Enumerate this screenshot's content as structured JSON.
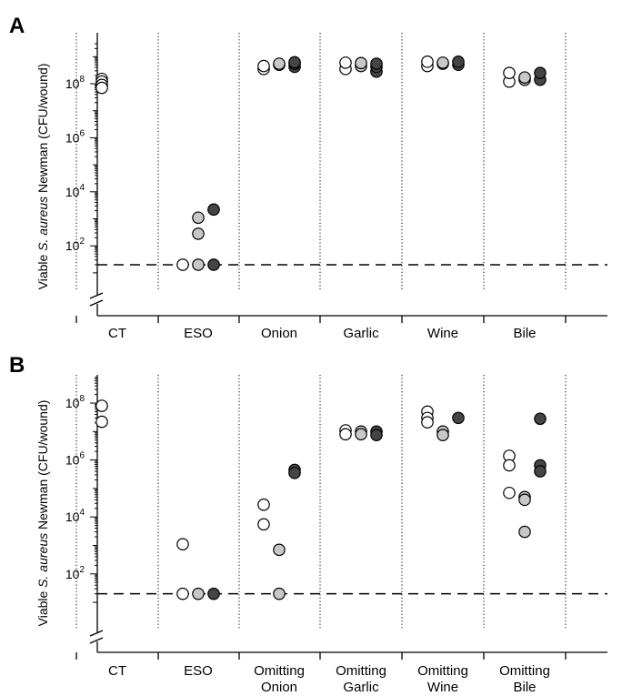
{
  "chart_data": [
    {
      "panel": "A",
      "type": "scatter",
      "yscale": "log",
      "ylim": [
        1,
        3000000000
      ],
      "yticks": [
        100,
        10000,
        1000000,
        100000000
      ],
      "ytick_labels": [
        "10^2",
        "10^4",
        "10^6",
        "10^8"
      ],
      "ylabel": "Viable S. aureus Newman (CFU/wound)",
      "ylabel_parts": [
        "Viable ",
        "S. aureus",
        " Newman (CFU/wound)"
      ],
      "detection_limit": 20,
      "categories": [
        {
          "label": [
            "CT"
          ]
        },
        {
          "label": [
            "ESO"
          ]
        },
        {
          "label": [
            "Onion"
          ]
        },
        {
          "label": [
            "Garlic"
          ]
        },
        {
          "label": [
            "Wine"
          ]
        },
        {
          "label": [
            "Bile"
          ]
        }
      ],
      "points": [
        {
          "cat": 0,
          "rep": 0,
          "values": [
            150000000,
            120000000,
            90000000,
            70000000
          ]
        },
        {
          "cat": 1,
          "rep": 0,
          "values": [
            20
          ]
        },
        {
          "cat": 1,
          "rep": 1,
          "values": [
            20,
            280,
            1100
          ]
        },
        {
          "cat": 1,
          "rep": 2,
          "values": [
            20,
            2200
          ]
        },
        {
          "cat": 2,
          "rep": 0,
          "values": [
            350000000,
            450000000
          ]
        },
        {
          "cat": 2,
          "rep": 1,
          "values": [
            500000000,
            550000000
          ]
        },
        {
          "cat": 2,
          "rep": 2,
          "values": [
            420000000,
            550000000,
            620000000
          ]
        },
        {
          "cat": 3,
          "rep": 0,
          "values": [
            350000000,
            600000000
          ]
        },
        {
          "cat": 3,
          "rep": 1,
          "values": [
            450000000,
            580000000
          ]
        },
        {
          "cat": 3,
          "rep": 2,
          "values": [
            280000000,
            420000000,
            550000000
          ]
        },
        {
          "cat": 4,
          "rep": 0,
          "values": [
            450000000,
            650000000
          ]
        },
        {
          "cat": 4,
          "rep": 1,
          "values": [
            550000000,
            600000000
          ]
        },
        {
          "cat": 4,
          "rep": 2,
          "values": [
            500000000,
            650000000
          ]
        },
        {
          "cat": 5,
          "rep": 0,
          "values": [
            120000000,
            250000000
          ]
        },
        {
          "cat": 5,
          "rep": 1,
          "values": [
            140000000,
            170000000
          ]
        },
        {
          "cat": 5,
          "rep": 2,
          "values": [
            140000000,
            250000000
          ]
        }
      ]
    },
    {
      "panel": "B",
      "type": "scatter",
      "yscale": "log",
      "ylim": [
        1,
        800000000
      ],
      "yticks": [
        100,
        10000,
        1000000,
        100000000
      ],
      "ytick_labels": [
        "10^2",
        "10^4",
        "10^6",
        "10^8"
      ],
      "ylabel": "Viable S. aureus Newman (CFU/wound)",
      "ylabel_parts": [
        "Viable ",
        "S. aureus",
        " Newman (CFU/wound)"
      ],
      "detection_limit": 20,
      "categories": [
        {
          "label": [
            "CT"
          ]
        },
        {
          "label": [
            "ESO"
          ]
        },
        {
          "label": [
            "Omitting",
            "Onion"
          ]
        },
        {
          "label": [
            "Omitting",
            "Garlic"
          ]
        },
        {
          "label": [
            "Omitting",
            "Wine"
          ]
        },
        {
          "label": [
            "Omitting",
            "Bile"
          ]
        }
      ],
      "points": [
        {
          "cat": 0,
          "rep": 0,
          "values": [
            80000000,
            22000000
          ]
        },
        {
          "cat": 1,
          "rep": 0,
          "values": [
            1100,
            20
          ]
        },
        {
          "cat": 1,
          "rep": 1,
          "values": [
            20
          ]
        },
        {
          "cat": 1,
          "rep": 2,
          "values": [
            20
          ]
        },
        {
          "cat": 2,
          "rep": 0,
          "values": [
            27000,
            5500
          ]
        },
        {
          "cat": 2,
          "rep": 1,
          "values": [
            700,
            20
          ]
        },
        {
          "cat": 2,
          "rep": 2,
          "values": [
            450000,
            350000
          ]
        },
        {
          "cat": 3,
          "rep": 0,
          "values": [
            11000000,
            8000000
          ]
        },
        {
          "cat": 3,
          "rep": 1,
          "values": [
            10000000,
            8000000
          ]
        },
        {
          "cat": 3,
          "rep": 2,
          "values": [
            10000000,
            7500000
          ]
        },
        {
          "cat": 4,
          "rep": 0,
          "values": [
            50000000,
            30000000,
            21000000
          ]
        },
        {
          "cat": 4,
          "rep": 1,
          "values": [
            10000000,
            7500000
          ]
        },
        {
          "cat": 4,
          "rep": 2,
          "values": [
            30000000
          ]
        },
        {
          "cat": 5,
          "rep": 0,
          "values": [
            1400000,
            650000,
            70000
          ]
        },
        {
          "cat": 5,
          "rep": 1,
          "values": [
            50000,
            40000,
            3000
          ]
        },
        {
          "cat": 5,
          "rep": 2,
          "values": [
            28000000,
            650000,
            400000
          ]
        }
      ]
    }
  ],
  "colors": {
    "replicate_fills": [
      "#ffffff",
      "#c8c8c8",
      "#454545"
    ],
    "marker_stroke": "#000000",
    "axis": "#000000"
  }
}
